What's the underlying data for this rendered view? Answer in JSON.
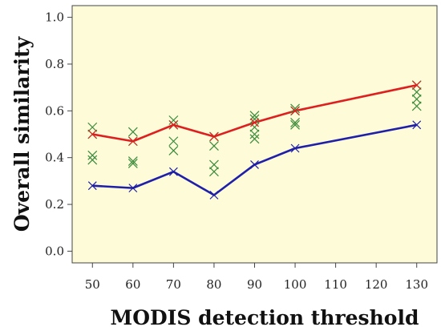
{
  "chart_data": {
    "type": "line",
    "title": "",
    "xlabel": "MODIS detection threshold",
    "ylabel": "Overall similarity",
    "xlim": [
      45,
      135
    ],
    "ylim": [
      -0.05,
      1.05
    ],
    "x_ticks": [
      50,
      60,
      70,
      80,
      90,
      100,
      110,
      120,
      130
    ],
    "y_ticks": [
      0.0,
      0.2,
      0.4,
      0.6,
      0.8,
      1.0
    ],
    "x_tick_labels": [
      "50",
      "60",
      "70",
      "80",
      "90",
      "100",
      "110",
      "120",
      "130"
    ],
    "y_tick_labels": [
      "0.0",
      "0.2",
      "0.4",
      "0.6",
      "0.8",
      "1.0"
    ],
    "plot_background": "#fdfbd8",
    "grid": false,
    "legend": "none",
    "marker": "x",
    "series": [
      {
        "color": "#dd1f1f",
        "x": [
          50,
          60,
          70,
          80,
          90,
          100,
          130
        ],
        "y": [
          0.5,
          0.47,
          0.54,
          0.49,
          0.55,
          0.6,
          0.71
        ]
      },
      {
        "color": "#1f1fa8",
        "x": [
          50,
          60,
          70,
          80,
          90,
          100,
          130
        ],
        "y": [
          0.28,
          0.27,
          0.34,
          0.24,
          0.37,
          0.44,
          0.54
        ]
      }
    ],
    "points": {
      "color": "#3a8a3a",
      "x": [
        50,
        50,
        50,
        50,
        60,
        60,
        60,
        60,
        70,
        70,
        70,
        70,
        80,
        80,
        80,
        80,
        90,
        90,
        90,
        90,
        90,
        100,
        100,
        100,
        100,
        130,
        130,
        130,
        130
      ],
      "y": [
        0.53,
        0.5,
        0.41,
        0.39,
        0.51,
        0.47,
        0.385,
        0.375,
        0.56,
        0.54,
        0.47,
        0.43,
        0.49,
        0.45,
        0.37,
        0.34,
        0.58,
        0.565,
        0.53,
        0.5,
        0.48,
        0.61,
        0.6,
        0.55,
        0.54,
        0.71,
        0.68,
        0.65,
        0.62
      ]
    }
  }
}
